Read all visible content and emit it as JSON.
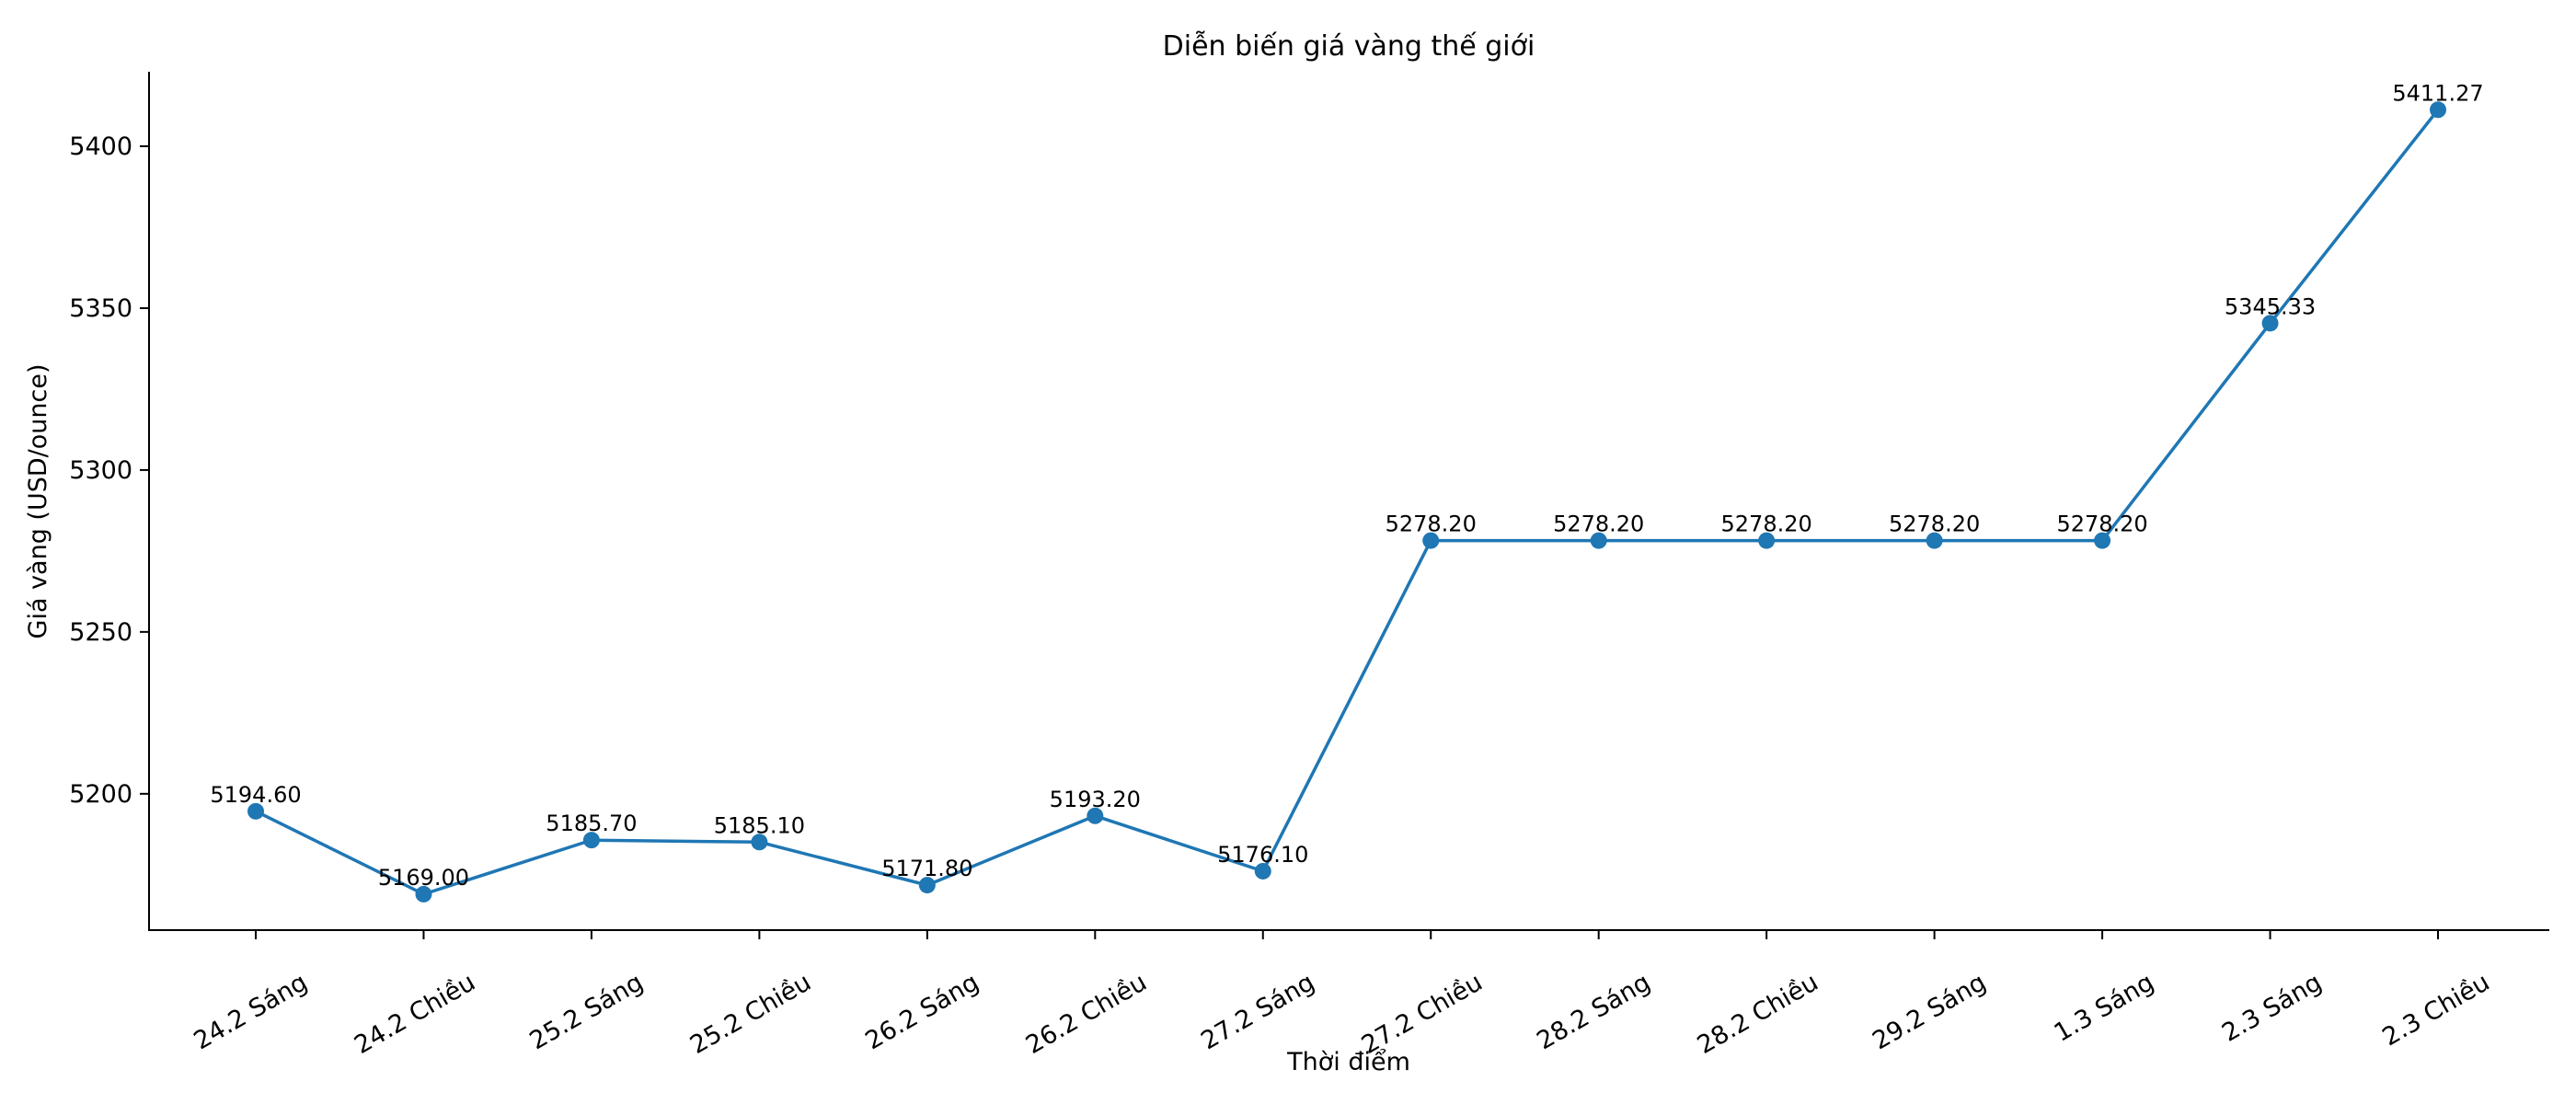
{
  "chart_data": {
    "type": "line",
    "title": "Diễn biến giá vàng thế giới",
    "xlabel": "Thời điểm",
    "ylabel": "Giá vàng (USD/ounce)",
    "categories": [
      "24.2 Sáng",
      "24.2 Chiều",
      "25.2 Sáng",
      "25.2 Chiều",
      "26.2 Sáng",
      "26.2 Chiều",
      "27.2 Sáng",
      "27.2 Chiều",
      "28.2 Sáng",
      "28.2 Chiều",
      "29.2 Sáng",
      "1.3 Sáng",
      "2.3 Sáng",
      "2.3 Chiều"
    ],
    "values": [
      5194.6,
      5169.0,
      5185.7,
      5185.1,
      5171.8,
      5193.2,
      5176.1,
      5278.2,
      5278.2,
      5278.2,
      5278.2,
      5278.2,
      5345.33,
      5411.27
    ],
    "value_labels": [
      "5194.60",
      "5169.00",
      "5185.70",
      "5185.10",
      "5171.80",
      "5193.20",
      "5176.10",
      "5278.20",
      "5278.20",
      "5278.20",
      "5278.20",
      "5278.20",
      "5345.33",
      "5411.27"
    ],
    "yticks": [
      5200,
      5250,
      5300,
      5350,
      5400
    ],
    "ylim": [
      5157.9,
      5423.0
    ],
    "grid": false,
    "color": "#1f77b4"
  }
}
